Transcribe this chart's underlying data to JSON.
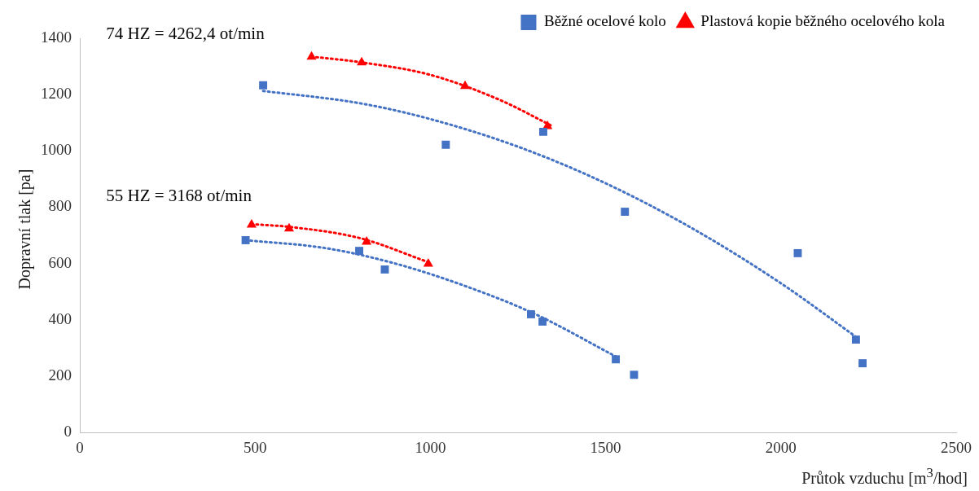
{
  "chart_data": {
    "type": "scatter",
    "xlabel": "Průtok vzduchu [m$^{3}$/hod]",
    "ylabel": "Dopravní tlak [pa]",
    "xlim": [
      0,
      2500
    ],
    "xticks": [
      0,
      500,
      1000,
      1500,
      2000,
      2500
    ],
    "ylim": [
      0,
      1400
    ],
    "yticks": [
      0,
      200,
      400,
      600,
      800,
      1000,
      1200,
      1400
    ],
    "grid": false,
    "legend": "top right",
    "annotations": [
      "74 HZ = 4262,4 ot/min",
      "55 HZ = 3168 ot/min"
    ],
    "series": [
      {
        "type": "line",
        "color": "#4472c4",
        "marker": "none",
        "line_style": "dotted",
        "x": [
          523,
          800,
          1000,
          1250,
          1500,
          1750,
          2000,
          2214
        ],
        "values": [
          1213,
          1169,
          1113,
          1015,
          885,
          723,
          530,
          340
        ]
      },
      {
        "type": "line",
        "color": "#ff0000",
        "marker": "none",
        "line_style": "dotted",
        "x": [
          661,
          800,
          1000,
          1200,
          1345
        ],
        "values": [
          1335,
          1315,
          1270,
          1180,
          1090
        ]
      },
      {
        "type": "line",
        "color": "#4472c4",
        "marker": "none",
        "line_style": "dotted",
        "x": [
          473,
          700,
          900,
          1100,
          1300,
          1529
        ],
        "values": [
          683,
          655,
          600,
          520,
          420,
          270
        ]
      },
      {
        "type": "line",
        "color": "#ff0000",
        "marker": "none",
        "line_style": "dotted",
        "x": [
          490,
          600,
          800,
          994
        ],
        "values": [
          740,
          730,
          690,
          605
        ]
      },
      {
        "name": "Běžné ocelové kolo",
        "color": "#4472c4",
        "marker": "square",
        "x": [
          523,
          1044,
          1322,
          1555,
          2048,
          2214,
          2233,
          473,
          797,
          870,
          1287,
          1320,
          1529,
          1581
        ],
        "values": [
          1233,
          1022,
          1068,
          784,
          637,
          330,
          246,
          683,
          645,
          579,
          420,
          394,
          260,
          205
        ]
      },
      {
        "name": "Plastová kopie běžného ocelového kola",
        "color": "#ff0000",
        "marker": "triangle",
        "x": [
          661,
          804,
          1099,
          1334,
          490,
          597,
          818,
          994
        ],
        "values": [
          1334,
          1314,
          1230,
          1088,
          738,
          724,
          677,
          599
        ]
      }
    ]
  }
}
